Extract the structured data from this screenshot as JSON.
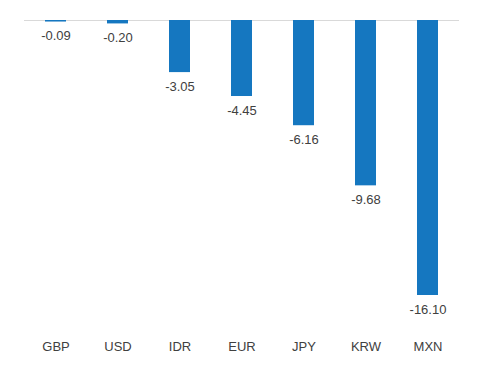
{
  "chart_data": {
    "type": "bar",
    "categories": [
      "GBP",
      "USD",
      "IDR",
      "EUR",
      "JPY",
      "KRW",
      "MXN"
    ],
    "values": [
      -0.09,
      -0.2,
      -3.05,
      -4.45,
      -6.16,
      -9.68,
      -16.1
    ],
    "value_labels": [
      "-0.09",
      "-0.20",
      "-3.05",
      "-4.45",
      "-6.16",
      "-9.68",
      "-16.10"
    ],
    "color": "#1577c0",
    "ylim": [
      -16.1,
      0
    ],
    "yticks": [
      0
    ],
    "grid": true,
    "data_labels": true,
    "tick_labels": "x"
  }
}
